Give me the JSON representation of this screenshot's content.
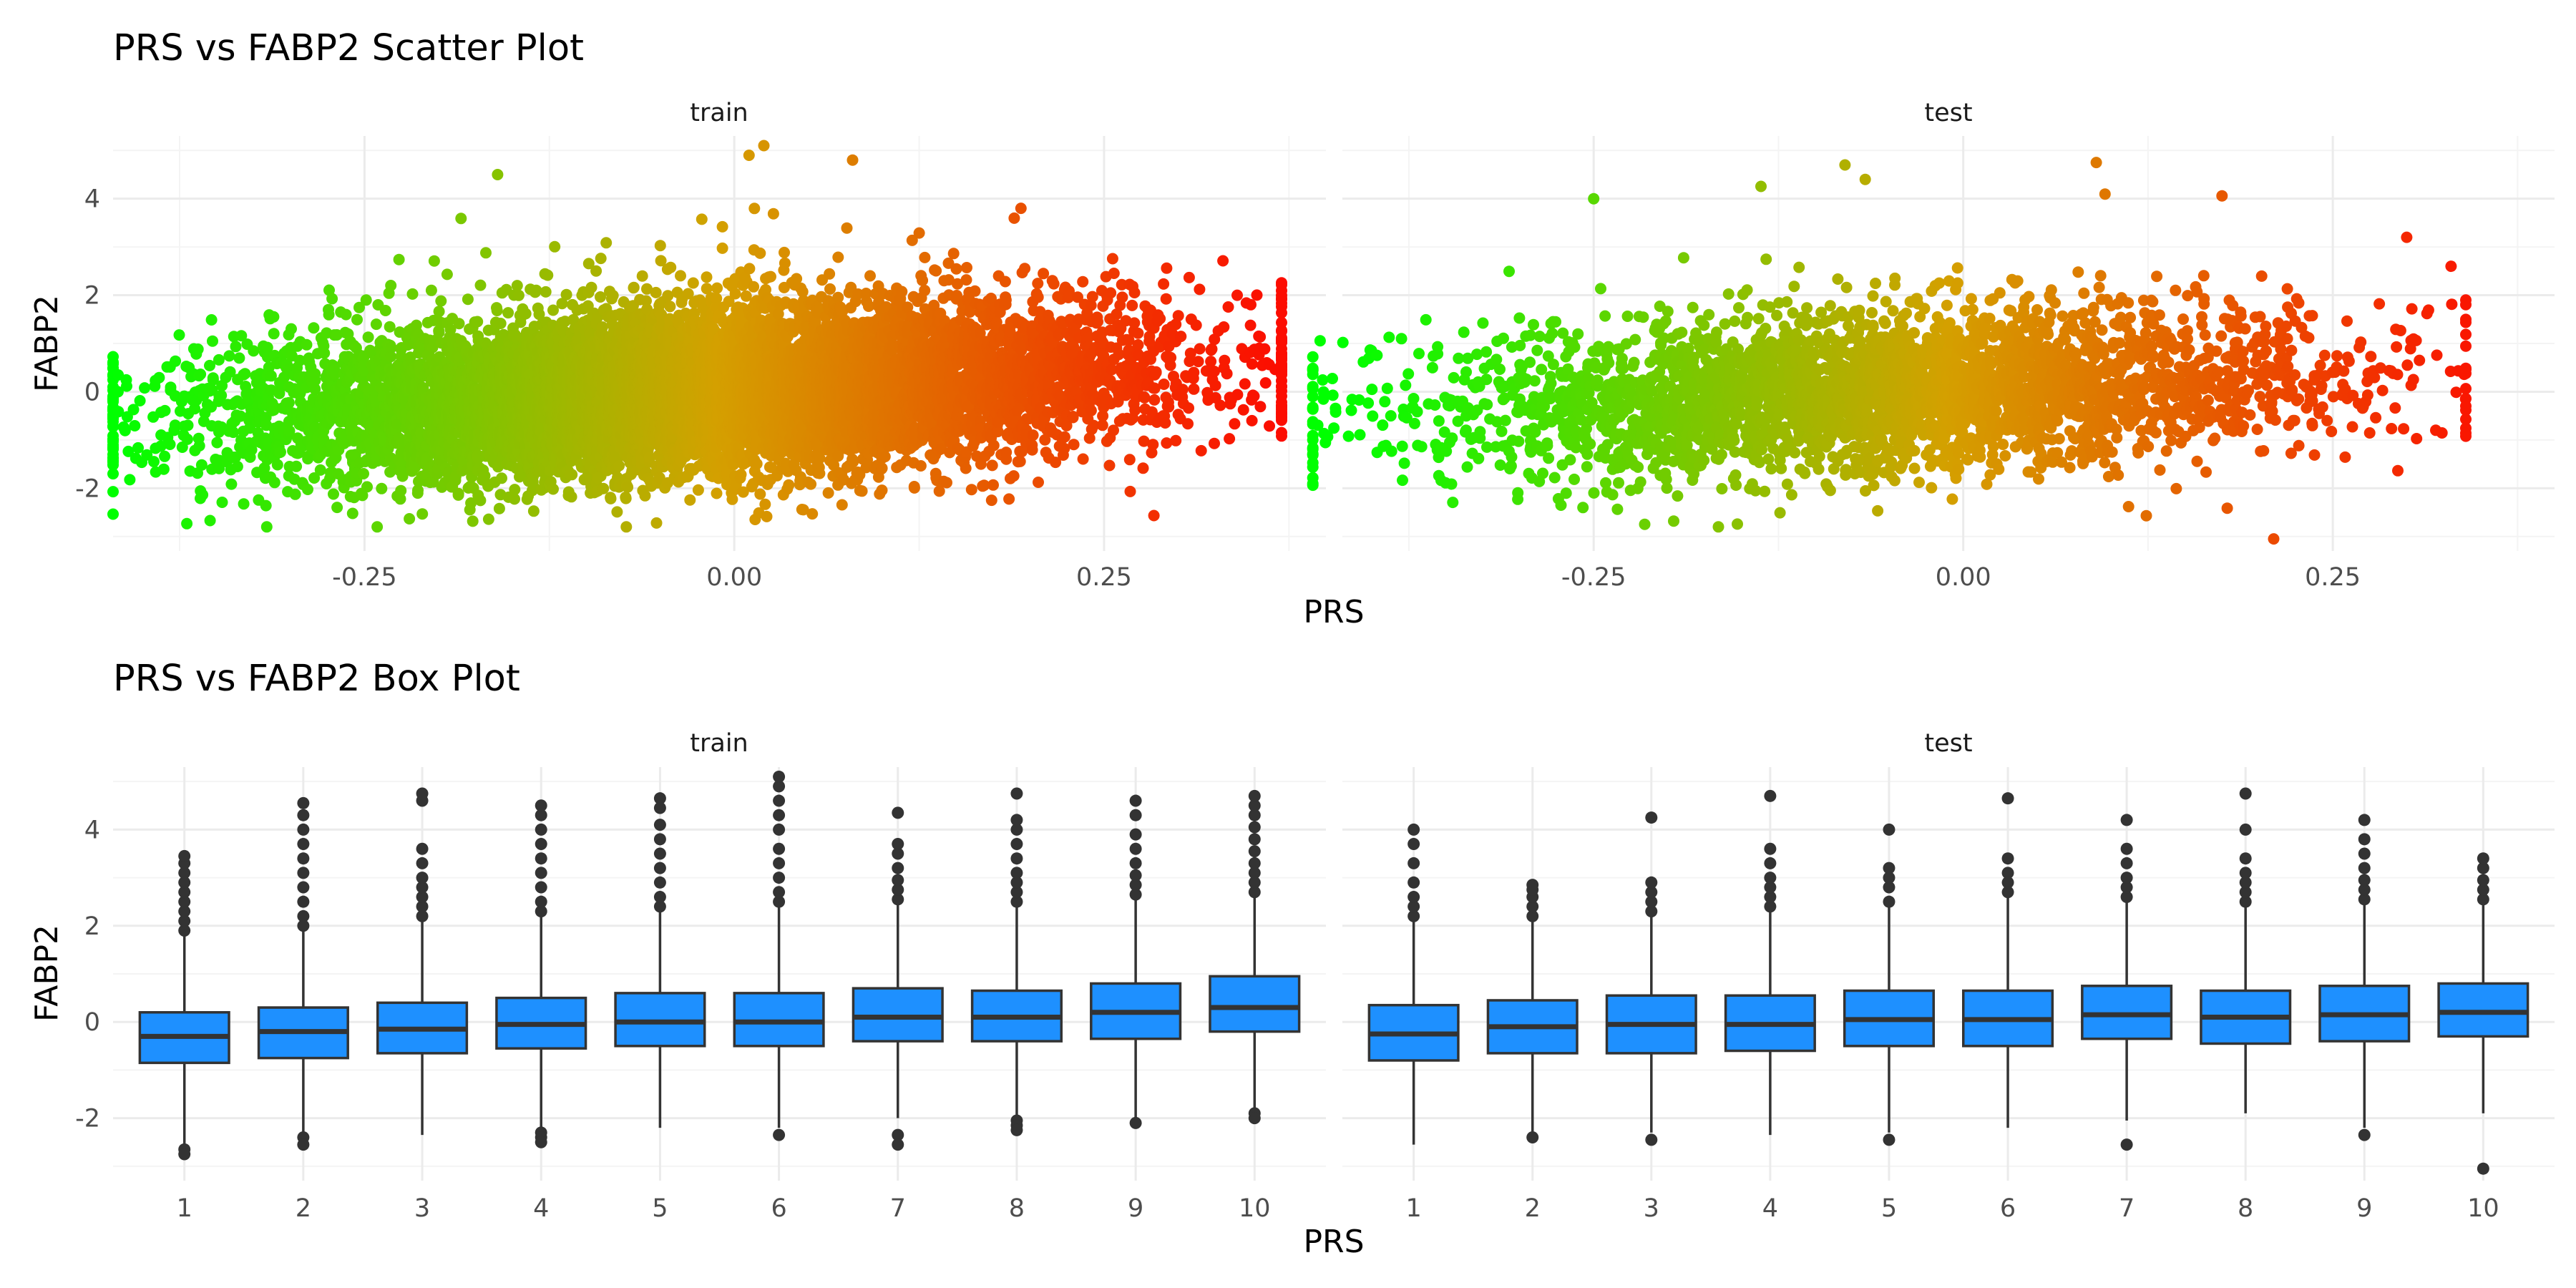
{
  "colors": {
    "low": "#00ff00",
    "mid": "#d4a000",
    "high": "#ff0000",
    "box_fill": "#1e90ff",
    "box_line": "#333333",
    "grid_major": "#ebebeb",
    "grid_minor": "#f4f4f4"
  },
  "chart_data": [
    {
      "type": "scatter",
      "title": "PRS vs FABP2 Scatter Plot",
      "xlabel": "PRS",
      "ylabel": "FABP2",
      "facets": [
        "train",
        "test"
      ],
      "xlim": [
        -0.42,
        0.4
      ],
      "ylim": [
        -3.3,
        5.3
      ],
      "x_ticks": [
        -0.25,
        0.0,
        0.25
      ],
      "x_tick_labels": [
        "-0.25",
        "0.00",
        "0.25"
      ],
      "y_ticks": [
        -2,
        0,
        2,
        4
      ],
      "y_tick_labels": [
        "-2",
        "0",
        "2",
        "4"
      ],
      "color_by": "PRS (gradient green → red)",
      "series": [
        {
          "facet": "train",
          "approx_points": 9000,
          "x_range": [
            -0.42,
            0.37
          ],
          "trend_intercept": 0.0,
          "trend_slope": 1.5,
          "noise_sd": 0.85,
          "notable_points": [
            [
              -0.42,
              -1.3
            ],
            [
              0.36,
              0.6
            ],
            [
              0.35,
              -0.6
            ],
            [
              0.34,
              2.0
            ],
            [
              0.02,
              5.1
            ],
            [
              0.01,
              4.9
            ],
            [
              -0.16,
              4.5
            ],
            [
              0.08,
              4.8
            ]
          ]
        },
        {
          "facet": "test",
          "approx_points": 3500,
          "x_range": [
            -0.44,
            0.34
          ],
          "trend_intercept": 0.0,
          "trend_slope": 1.2,
          "noise_sd": 0.8,
          "notable_points": [
            [
              -0.44,
              -0.35
            ],
            [
              -0.4,
              0.05
            ],
            [
              -0.38,
              1.1
            ],
            [
              0.34,
              1.9
            ],
            [
              0.33,
              2.6
            ],
            [
              0.3,
              3.2
            ],
            [
              0.21,
              -3.05
            ],
            [
              0.09,
              4.75
            ],
            [
              -0.08,
              4.7
            ],
            [
              -0.25,
              4.0
            ]
          ]
        }
      ]
    },
    {
      "type": "box",
      "title": "PRS vs FABP2 Box Plot",
      "xlabel": "PRS",
      "ylabel": "FABP2",
      "facets": [
        "train",
        "test"
      ],
      "categories": [
        "1",
        "2",
        "3",
        "4",
        "5",
        "6",
        "7",
        "8",
        "9",
        "10"
      ],
      "ylim": [
        -3.3,
        5.3
      ],
      "y_ticks": [
        -2,
        0,
        2,
        4
      ],
      "y_tick_labels": [
        "-2",
        "0",
        "2",
        "4"
      ],
      "series": [
        {
          "facet": "train",
          "boxes": [
            {
              "q1": -0.85,
              "median": -0.3,
              "q3": 0.2,
              "lower": -2.55,
              "upper": 1.85,
              "outliers": [
                -2.65,
                -2.75,
                1.9,
                2.1,
                2.3,
                2.5,
                2.7,
                2.9,
                3.1,
                3.3,
                3.45
              ]
            },
            {
              "q1": -0.75,
              "median": -0.2,
              "q3": 0.3,
              "lower": -2.3,
              "upper": 1.95,
              "outliers": [
                -2.4,
                -2.55,
                2.0,
                2.2,
                2.5,
                2.8,
                3.1,
                3.4,
                3.7,
                4.0,
                4.3,
                4.55
              ]
            },
            {
              "q1": -0.65,
              "median": -0.15,
              "q3": 0.4,
              "lower": -2.35,
              "upper": 2.1,
              "outliers": [
                2.2,
                2.4,
                2.6,
                2.8,
                3.0,
                3.3,
                3.6,
                4.6,
                4.75
              ]
            },
            {
              "q1": -0.55,
              "median": -0.05,
              "q3": 0.5,
              "lower": -2.2,
              "upper": 2.25,
              "outliers": [
                -2.3,
                -2.4,
                -2.5,
                2.3,
                2.5,
                2.8,
                3.1,
                3.4,
                3.7,
                4.0,
                4.3,
                4.5
              ]
            },
            {
              "q1": -0.5,
              "median": 0.0,
              "q3": 0.6,
              "lower": -2.2,
              "upper": 2.3,
              "outliers": [
                2.4,
                2.6,
                2.9,
                3.2,
                3.5,
                3.8,
                4.1,
                4.45,
                4.65
              ]
            },
            {
              "q1": -0.5,
              "median": 0.0,
              "q3": 0.6,
              "lower": -2.2,
              "upper": 2.4,
              "outliers": [
                -2.35,
                2.5,
                2.7,
                3.0,
                3.3,
                3.6,
                4.0,
                4.3,
                4.6,
                4.9,
                5.1
              ]
            },
            {
              "q1": -0.4,
              "median": 0.1,
              "q3": 0.7,
              "lower": -2.0,
              "upper": 2.5,
              "outliers": [
                -2.35,
                -2.55,
                2.55,
                2.75,
                2.95,
                3.2,
                3.5,
                3.7,
                4.35
              ]
            },
            {
              "q1": -0.4,
              "median": 0.1,
              "q3": 0.65,
              "lower": -1.95,
              "upper": 2.4,
              "outliers": [
                -2.05,
                -2.15,
                -2.25,
                2.5,
                2.7,
                2.9,
                3.1,
                3.4,
                3.7,
                4.0,
                4.2,
                4.75
              ]
            },
            {
              "q1": -0.35,
              "median": 0.2,
              "q3": 0.8,
              "lower": -2.05,
              "upper": 2.6,
              "outliers": [
                -2.1,
                2.65,
                2.85,
                3.05,
                3.3,
                3.6,
                3.9,
                4.3,
                4.6
              ]
            },
            {
              "q1": -0.2,
              "median": 0.3,
              "q3": 0.95,
              "lower": -1.85,
              "upper": 2.65,
              "outliers": [
                -1.9,
                -2.0,
                2.7,
                2.9,
                3.1,
                3.3,
                3.55,
                3.8,
                4.05,
                4.3,
                4.5,
                4.7
              ]
            }
          ]
        },
        {
          "facet": "test",
          "boxes": [
            {
              "q1": -0.8,
              "median": -0.25,
              "q3": 0.35,
              "lower": -2.55,
              "upper": 2.1,
              "outliers": [
                2.2,
                2.4,
                2.6,
                2.9,
                3.3,
                3.7,
                4.0
              ]
            },
            {
              "q1": -0.65,
              "median": -0.1,
              "q3": 0.45,
              "lower": -2.3,
              "upper": 2.1,
              "outliers": [
                -2.4,
                2.2,
                2.4,
                2.6,
                2.75,
                2.85
              ]
            },
            {
              "q1": -0.65,
              "median": -0.05,
              "q3": 0.55,
              "lower": -2.3,
              "upper": 2.2,
              "outliers": [
                -2.45,
                2.3,
                2.5,
                2.7,
                2.9,
                4.25
              ]
            },
            {
              "q1": -0.6,
              "median": -0.05,
              "q3": 0.55,
              "lower": -2.35,
              "upper": 2.3,
              "outliers": [
                2.4,
                2.6,
                2.8,
                3.0,
                3.3,
                3.6,
                4.7
              ]
            },
            {
              "q1": -0.5,
              "median": 0.05,
              "q3": 0.65,
              "lower": -2.3,
              "upper": 2.45,
              "outliers": [
                -2.45,
                2.5,
                2.8,
                3.0,
                3.2,
                4.0
              ]
            },
            {
              "q1": -0.5,
              "median": 0.05,
              "q3": 0.65,
              "lower": -2.2,
              "upper": 2.6,
              "outliers": [
                2.7,
                2.9,
                3.1,
                3.4,
                4.65
              ]
            },
            {
              "q1": -0.35,
              "median": 0.15,
              "q3": 0.75,
              "lower": -2.05,
              "upper": 2.55,
              "outliers": [
                -2.55,
                2.6,
                2.8,
                3.0,
                3.3,
                3.6,
                4.2
              ]
            },
            {
              "q1": -0.45,
              "median": 0.1,
              "q3": 0.65,
              "lower": -1.9,
              "upper": 2.4,
              "outliers": [
                2.5,
                2.7,
                2.9,
                3.1,
                3.4,
                4.0,
                4.75
              ]
            },
            {
              "q1": -0.4,
              "median": 0.15,
              "q3": 0.75,
              "lower": -2.2,
              "upper": 2.5,
              "outliers": [
                -2.35,
                2.55,
                2.75,
                2.95,
                3.2,
                3.5,
                3.8,
                4.2
              ]
            },
            {
              "q1": -0.3,
              "median": 0.2,
              "q3": 0.8,
              "lower": -1.9,
              "upper": 2.5,
              "outliers": [
                -3.05,
                2.55,
                2.75,
                2.95,
                3.2,
                3.4
              ]
            }
          ]
        }
      ]
    }
  ]
}
